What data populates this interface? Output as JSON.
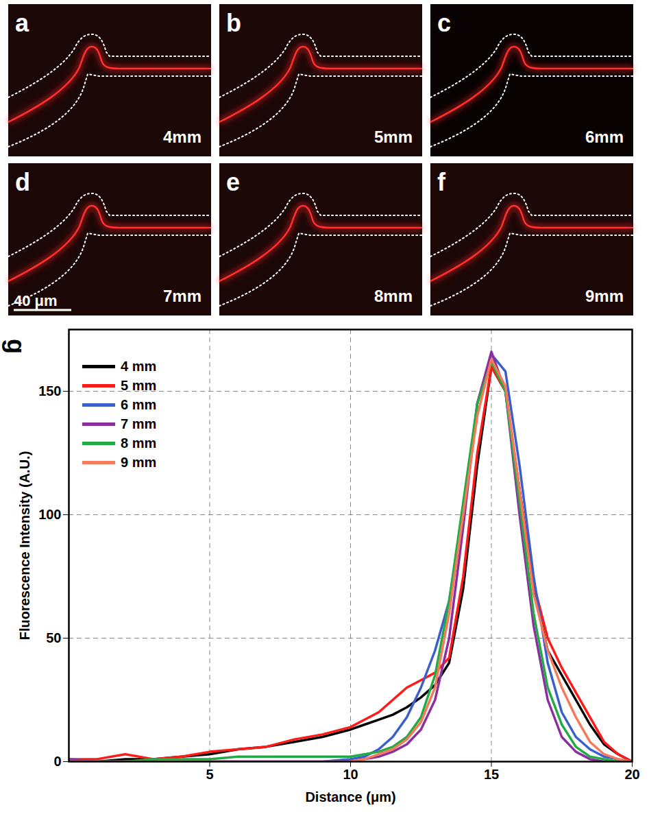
{
  "panels": [
    {
      "letter": "a",
      "label": "4mm"
    },
    {
      "letter": "b",
      "label": "5mm"
    },
    {
      "letter": "c",
      "label": "6mm"
    },
    {
      "letter": "d",
      "label": "7mm",
      "scale_bar": "40 μm"
    },
    {
      "letter": "e",
      "label": "8mm"
    },
    {
      "letter": "f",
      "label": "9mm"
    }
  ],
  "chart_data": {
    "type": "line",
    "panel_label": "g",
    "x_label": "Distance (μm)",
    "y_label": "Fluorescence Intensity (A.U.)",
    "xlim": [
      0,
      20
    ],
    "xticks": [
      5,
      10,
      15,
      20
    ],
    "ylim": [
      0,
      175
    ],
    "yticks": [
      0,
      50,
      100,
      150
    ],
    "grid": true,
    "legend": "upper left",
    "x": [
      0,
      1,
      2,
      3,
      4,
      5,
      6,
      7,
      8,
      9,
      10,
      10.5,
      11,
      11.5,
      12,
      12.5,
      13,
      13.5,
      14,
      14.5,
      15,
      15.5,
      16,
      16.5,
      17,
      17.5,
      18,
      18.5,
      19,
      19.5,
      20
    ],
    "series": [
      {
        "name": "4 mm",
        "color": "#000000",
        "values": [
          0,
          0,
          1,
          1,
          2,
          3,
          5,
          6,
          8,
          10,
          13,
          15,
          17,
          19,
          22,
          26,
          31,
          40,
          70,
          120,
          160,
          150,
          110,
          70,
          45,
          35,
          25,
          15,
          7,
          3,
          0
        ]
      },
      {
        "name": "5 mm",
        "color": "#ff1a1a",
        "values": [
          1,
          1,
          3,
          1,
          2,
          4,
          5,
          6,
          9,
          11,
          14,
          17,
          20,
          25,
          30,
          33,
          36,
          42,
          75,
          125,
          160,
          150,
          110,
          72,
          50,
          38,
          28,
          18,
          8,
          3,
          0
        ]
      },
      {
        "name": "6 mm",
        "color": "#3a5fcd",
        "values": [
          0,
          0,
          0,
          0,
          0,
          0,
          0,
          0,
          0,
          0,
          1,
          2,
          5,
          10,
          18,
          30,
          45,
          65,
          100,
          145,
          165,
          158,
          120,
          75,
          40,
          20,
          10,
          5,
          2,
          1,
          0
        ]
      },
      {
        "name": "7 mm",
        "color": "#8b2fa0",
        "values": [
          1,
          0,
          0,
          0,
          0,
          0,
          0,
          0,
          0,
          0,
          0,
          1,
          2,
          4,
          7,
          13,
          25,
          50,
          95,
          145,
          166,
          150,
          100,
          55,
          25,
          10,
          4,
          1,
          0,
          0,
          0
        ]
      },
      {
        "name": "8 mm",
        "color": "#22aa44",
        "values": [
          0,
          0,
          0,
          1,
          1,
          1,
          2,
          2,
          2,
          2,
          2,
          3,
          4,
          6,
          10,
          18,
          35,
          65,
          105,
          145,
          162,
          150,
          105,
          60,
          30,
          15,
          6,
          2,
          1,
          0,
          0
        ]
      },
      {
        "name": "9 mm",
        "color": "#f47a5a",
        "values": [
          0,
          0,
          0,
          0,
          0,
          0,
          0,
          0,
          0,
          0,
          0,
          1,
          3,
          5,
          9,
          16,
          30,
          60,
          100,
          140,
          163,
          152,
          110,
          68,
          45,
          30,
          18,
          8,
          3,
          1,
          0
        ]
      }
    ]
  }
}
